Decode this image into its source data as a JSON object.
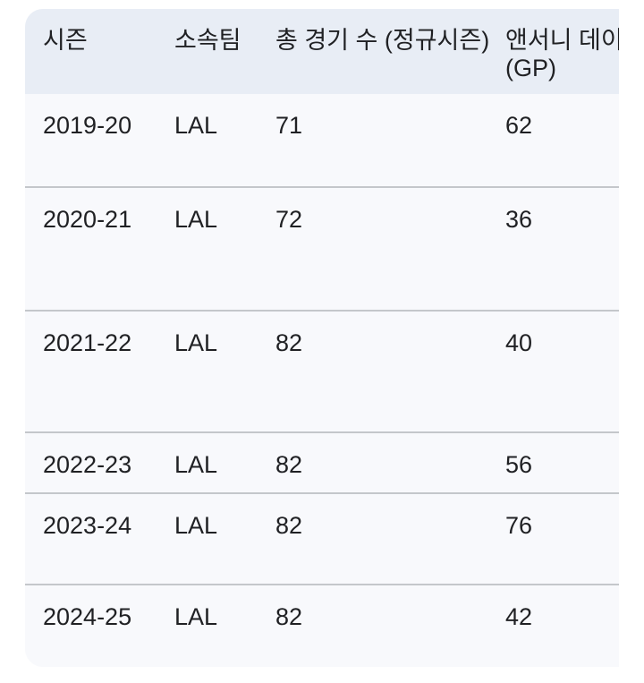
{
  "table": {
    "columns": [
      {
        "label": "시즌"
      },
      {
        "label": "소속팀"
      },
      {
        "label": "총 경기 수 (정규시즌)"
      },
      {
        "label": "앤서니 데이비스",
        "label_line2": "(GP)"
      }
    ],
    "rows": [
      {
        "season": "2019-20",
        "team": "LAL",
        "total_games": "71",
        "gp": "62"
      },
      {
        "season": "2020-21",
        "team": "LAL",
        "total_games": "72",
        "gp": "36"
      },
      {
        "season": "2021-22",
        "team": "LAL",
        "total_games": "82",
        "gp": "40"
      },
      {
        "season": "2022-23",
        "team": "LAL",
        "total_games": "82",
        "gp": "56"
      },
      {
        "season": "2023-24",
        "team": "LAL",
        "total_games": "82",
        "gp": "76"
      },
      {
        "season": "2024-25",
        "team": "LAL",
        "total_games": "82",
        "gp": "42"
      }
    ],
    "colors": {
      "header_bg": "#e8edf5",
      "row_bg": "#f8f9fc",
      "divider": "#c4c7cb",
      "text": "#202124",
      "page_bg": "#ffffff"
    }
  }
}
